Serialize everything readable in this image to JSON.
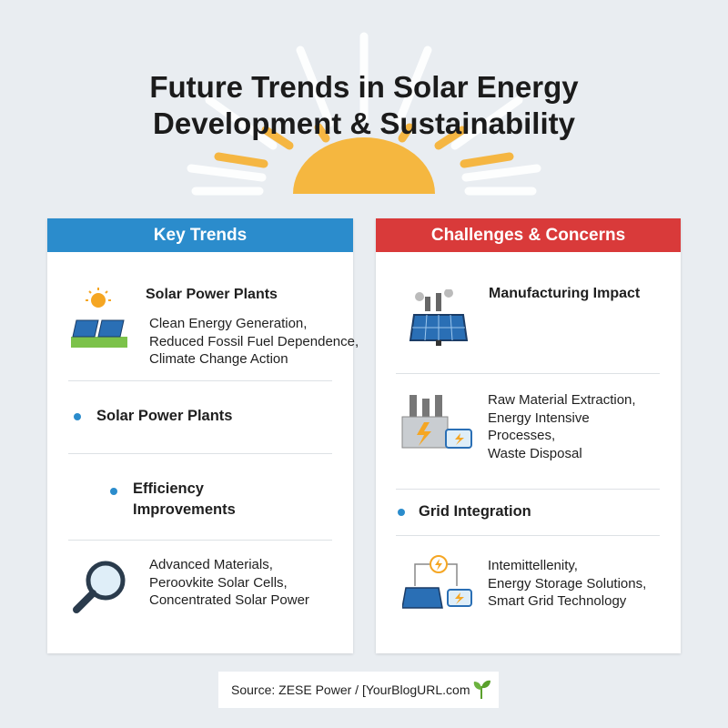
{
  "title": {
    "lines": [
      "Future Trends in Solar Energy",
      "Development & Sustainability"
    ]
  },
  "left_panel": {
    "header": "Key Trends",
    "items": [
      {
        "heading": "Solar Power Plants",
        "lines": [
          "Clean Energy Generation,",
          "Reduced Fossil Fuel Dependence,",
          "Climate Change Action"
        ]
      },
      {
        "bullet": "Solar Power Plants"
      },
      {
        "bullet_lines": [
          "Efficiency",
          "Improvements"
        ]
      },
      {
        "lines": [
          "Advanced Materials,",
          "Peroovkite Solar Cells,",
          "Concentrated Solar Power"
        ]
      }
    ]
  },
  "right_panel": {
    "header": "Challenges & Concerns",
    "items": [
      {
        "heading": "Manufacturing Impact"
      },
      {
        "lines": [
          "Raw Material Extraction,",
          "Energy Intensive",
          "Processes,",
          "Waste Disposal"
        ]
      },
      {
        "bullet": "Grid Integration"
      },
      {
        "lines": [
          "Intemittellenity,",
          "Energy Storage Solutions,",
          "Smart Grid Technology"
        ]
      }
    ]
  },
  "source": "Source: ZESE Power / [YourBlogURL.com"
}
